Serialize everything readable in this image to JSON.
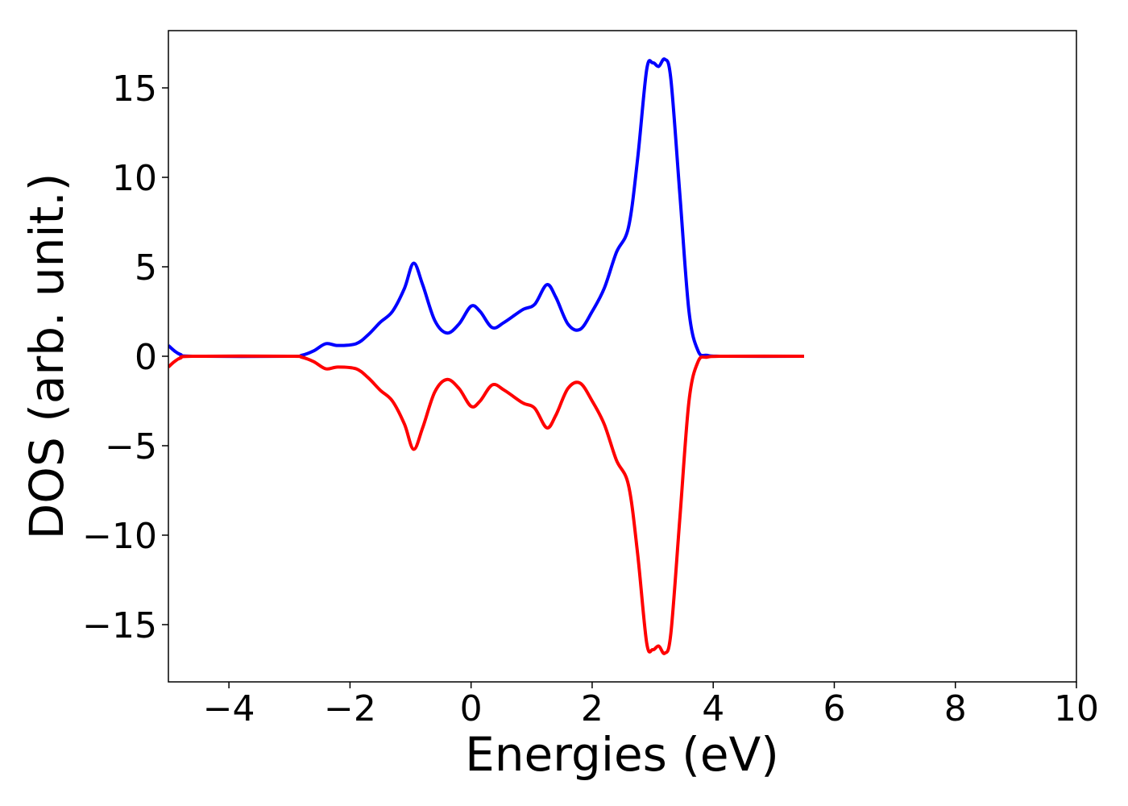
{
  "chart_data": {
    "type": "line",
    "title": "",
    "xlabel": "Energies (eV)",
    "ylabel": "DOS (arb. unit.)",
    "xlim": [
      -5,
      10
    ],
    "ylim": [
      -18.2,
      18.2
    ],
    "x_ticks": [
      -4,
      -2,
      0,
      2,
      4,
      6,
      8,
      10
    ],
    "x_tick_labels": [
      "−4",
      "−2",
      "0",
      "2",
      "4",
      "6",
      "8",
      "10"
    ],
    "y_ticks": [
      15,
      10,
      5,
      0,
      -5,
      -10,
      -15
    ],
    "y_tick_labels": [
      "15",
      "10",
      "5",
      "0",
      "−5",
      "−10",
      "−15"
    ],
    "grid": false,
    "legend": "none",
    "series": [
      {
        "color": "#0000ff",
        "points": [
          [
            -5.0,
            0.6
          ],
          [
            -4.9,
            0.3
          ],
          [
            -4.8,
            0.1
          ],
          [
            -4.6,
            0.0
          ],
          [
            -3.0,
            0.0
          ],
          [
            -2.8,
            0.05
          ],
          [
            -2.6,
            0.3
          ],
          [
            -2.4,
            0.7
          ],
          [
            -2.2,
            0.6
          ],
          [
            -1.9,
            0.7
          ],
          [
            -1.7,
            1.2
          ],
          [
            -1.5,
            1.9
          ],
          [
            -1.3,
            2.5
          ],
          [
            -1.1,
            3.8
          ],
          [
            -0.95,
            5.2
          ],
          [
            -0.8,
            4.0
          ],
          [
            -0.6,
            2.0
          ],
          [
            -0.4,
            1.3
          ],
          [
            -0.2,
            1.8
          ],
          [
            0.0,
            2.8
          ],
          [
            0.15,
            2.5
          ],
          [
            0.35,
            1.6
          ],
          [
            0.55,
            1.9
          ],
          [
            0.85,
            2.6
          ],
          [
            1.05,
            2.9
          ],
          [
            1.25,
            4.0
          ],
          [
            1.4,
            3.3
          ],
          [
            1.6,
            1.8
          ],
          [
            1.8,
            1.5
          ],
          [
            2.0,
            2.5
          ],
          [
            2.2,
            3.8
          ],
          [
            2.4,
            5.8
          ],
          [
            2.6,
            7.2
          ],
          [
            2.75,
            11.0
          ],
          [
            2.9,
            16.0
          ],
          [
            3.0,
            16.4
          ],
          [
            3.1,
            16.2
          ],
          [
            3.2,
            16.6
          ],
          [
            3.3,
            15.5
          ],
          [
            3.45,
            9.0
          ],
          [
            3.6,
            2.5
          ],
          [
            3.75,
            0.3
          ],
          [
            3.9,
            0.05
          ],
          [
            4.2,
            0.0
          ],
          [
            5.5,
            0.0
          ]
        ]
      },
      {
        "color": "#ff0000",
        "points": [
          [
            -5.0,
            -0.6
          ],
          [
            -4.9,
            -0.3
          ],
          [
            -4.8,
            -0.1
          ],
          [
            -4.6,
            0.0
          ],
          [
            -3.0,
            0.0
          ],
          [
            -2.8,
            -0.05
          ],
          [
            -2.6,
            -0.3
          ],
          [
            -2.4,
            -0.7
          ],
          [
            -2.2,
            -0.6
          ],
          [
            -1.9,
            -0.7
          ],
          [
            -1.7,
            -1.2
          ],
          [
            -1.5,
            -1.9
          ],
          [
            -1.3,
            -2.5
          ],
          [
            -1.1,
            -3.8
          ],
          [
            -0.95,
            -5.2
          ],
          [
            -0.8,
            -4.0
          ],
          [
            -0.6,
            -2.0
          ],
          [
            -0.4,
            -1.3
          ],
          [
            -0.2,
            -1.8
          ],
          [
            0.0,
            -2.8
          ],
          [
            0.15,
            -2.5
          ],
          [
            0.35,
            -1.6
          ],
          [
            0.55,
            -1.9
          ],
          [
            0.85,
            -2.6
          ],
          [
            1.05,
            -2.9
          ],
          [
            1.25,
            -4.0
          ],
          [
            1.4,
            -3.3
          ],
          [
            1.6,
            -1.8
          ],
          [
            1.8,
            -1.5
          ],
          [
            2.0,
            -2.5
          ],
          [
            2.2,
            -3.8
          ],
          [
            2.4,
            -5.8
          ],
          [
            2.6,
            -7.2
          ],
          [
            2.75,
            -11.0
          ],
          [
            2.9,
            -16.0
          ],
          [
            3.0,
            -16.4
          ],
          [
            3.1,
            -16.2
          ],
          [
            3.2,
            -16.6
          ],
          [
            3.3,
            -15.5
          ],
          [
            3.45,
            -9.0
          ],
          [
            3.6,
            -2.5
          ],
          [
            3.75,
            -0.3
          ],
          [
            3.9,
            -0.05
          ],
          [
            4.2,
            0.0
          ],
          [
            5.5,
            0.0
          ]
        ]
      }
    ]
  }
}
